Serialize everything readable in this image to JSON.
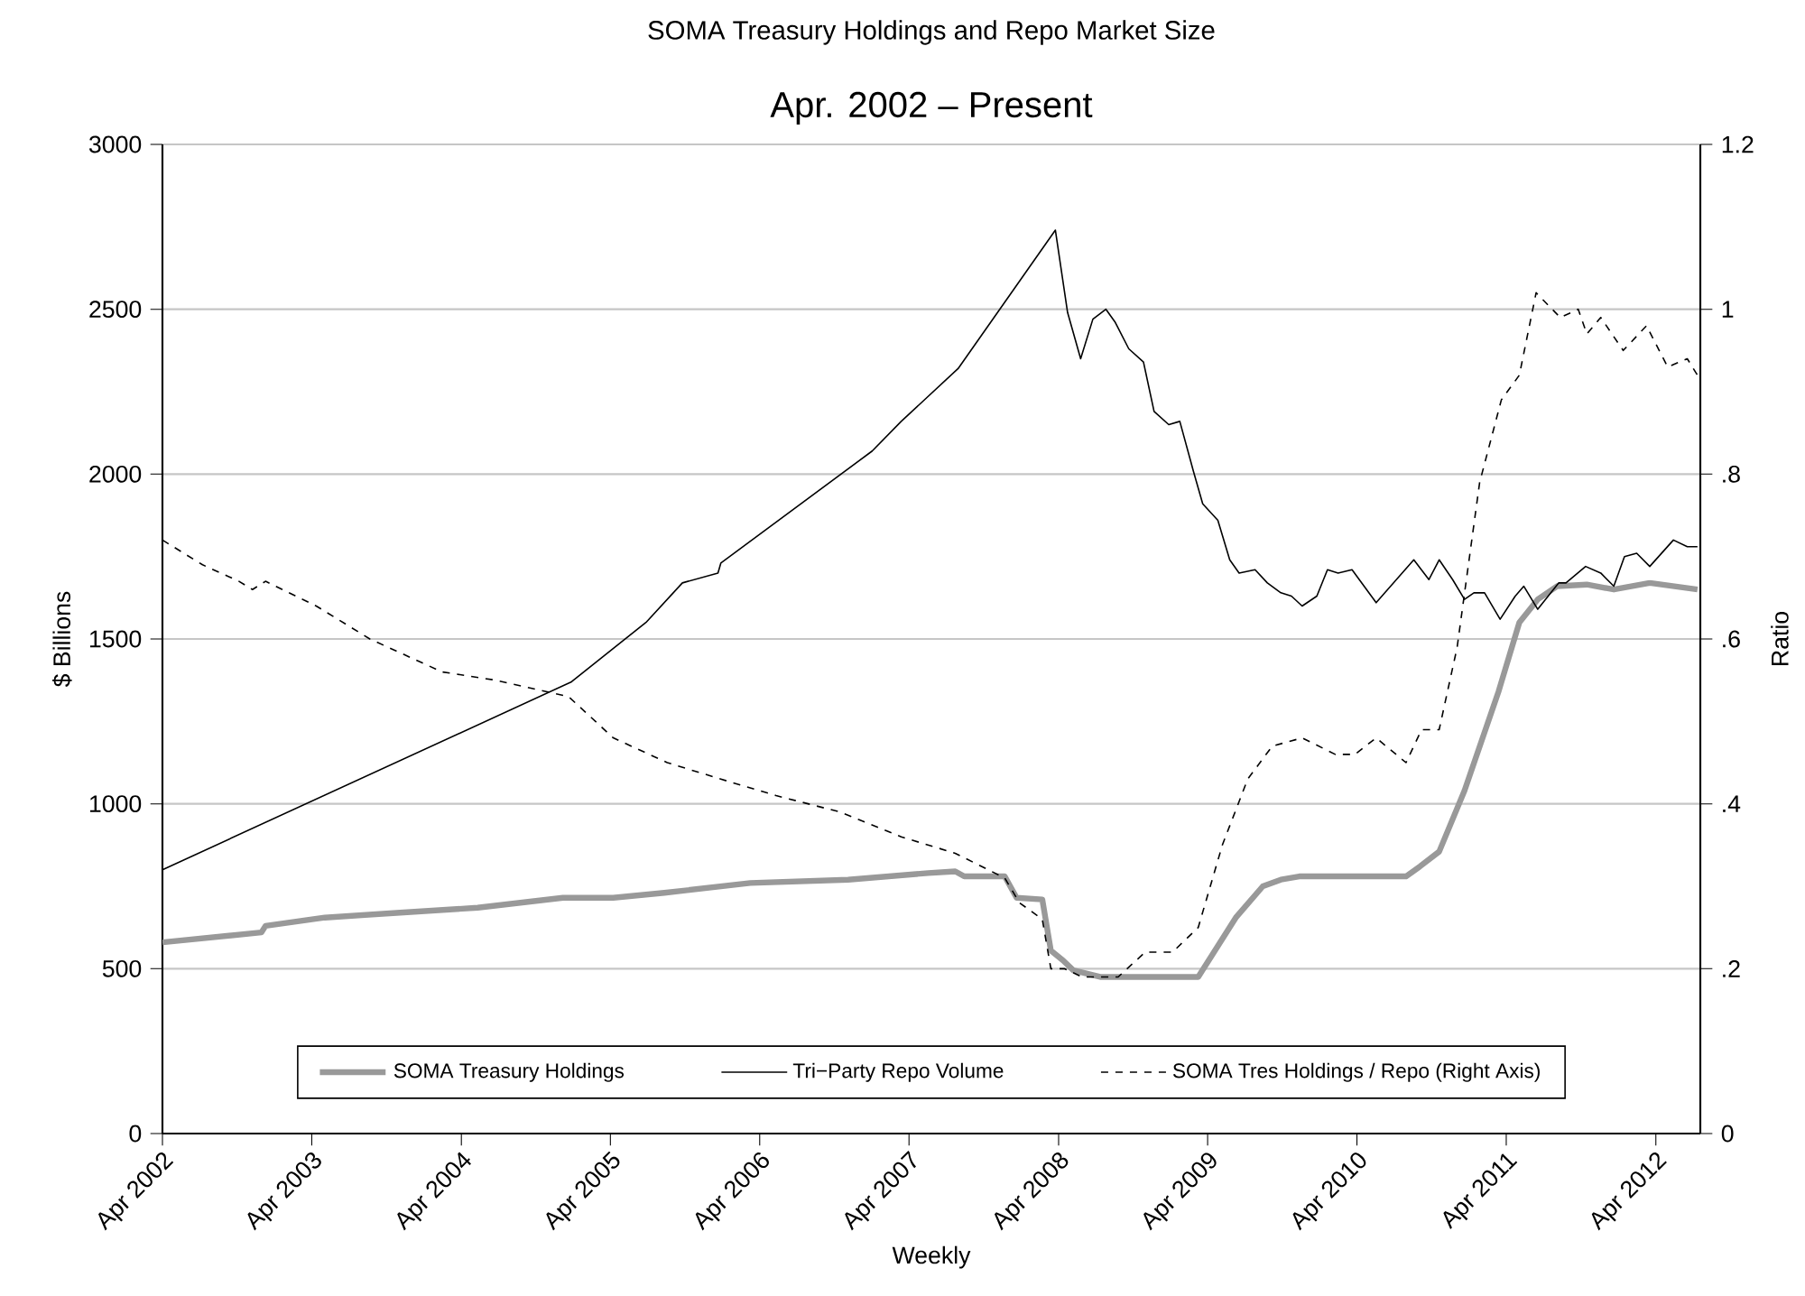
{
  "chart_data": {
    "type": "line",
    "title": "SOMA Treasury Holdings and Repo Market Size",
    "subtitle": "Apr. 2002 – Present",
    "xlabel": "Weekly",
    "ylabel": "$ Billions",
    "y2label": "Ratio",
    "xlim": [
      "2002-04-01",
      "2012-07-19"
    ],
    "xticks": [
      {
        "value": "2002-04-01",
        "label": "Apr 2002"
      },
      {
        "value": "2003-04-01",
        "label": "Apr 2003"
      },
      {
        "value": "2004-04-01",
        "label": "Apr 2004"
      },
      {
        "value": "2005-04-01",
        "label": "Apr 2005"
      },
      {
        "value": "2006-04-01",
        "label": "Apr 2006"
      },
      {
        "value": "2007-04-01",
        "label": "Apr 2007"
      },
      {
        "value": "2008-04-01",
        "label": "Apr 2008"
      },
      {
        "value": "2009-04-01",
        "label": "Apr 2009"
      },
      {
        "value": "2010-04-01",
        "label": "Apr 2010"
      },
      {
        "value": "2011-04-01",
        "label": "Apr 2011"
      },
      {
        "value": "2012-04-01",
        "label": "Apr 2012"
      }
    ],
    "ylim": [
      0,
      3000
    ],
    "yticks": [
      0,
      500,
      1000,
      1500,
      2000,
      2500,
      3000
    ],
    "y2lim": [
      0,
      1.2
    ],
    "y2ticks": [
      0,
      {
        "value": 0.2,
        "label": ".2"
      },
      {
        "value": 0.4,
        "label": ".4"
      },
      {
        "value": 0.6,
        "label": ".6"
      },
      {
        "value": 0.8,
        "label": ".8"
      },
      1,
      1.2
    ],
    "grid": "y",
    "legend": "bottom",
    "marker": "none",
    "series": [
      {
        "name": "SOMA Treasury Holdings",
        "color": "#999999",
        "line_style": "solid",
        "x": [
          "2002-04-01",
          "2002-11-29",
          "2002-12-09",
          "2003-05-03",
          "2003-11-03",
          "2004-05-11",
          "2004-12-06",
          "2005-04-08",
          "2005-08-11",
          "2006-03-09",
          "2006-11-03",
          "2007-05-18",
          "2007-07-23",
          "2007-08-14",
          "2007-11-21",
          "2007-12-20",
          "2008-02-21",
          "2008-03-13",
          "2008-04-12",
          "2008-05-07",
          "2008-07-12",
          "2009-03-09",
          "2009-06-09",
          "2009-08-14",
          "2009-09-27",
          "2009-11-11",
          "2010-07-30",
          "2010-09-02",
          "2010-10-19",
          "2010-12-20",
          "2011-03-13",
          "2011-05-03",
          "2011-06-17",
          "2011-08-03",
          "2011-10-15",
          "2011-12-20",
          "2012-03-17",
          "2012-07-12"
        ],
        "values": [
          580,
          610,
          630,
          655,
          670,
          685,
          715,
          715,
          730,
          760,
          770,
          790,
          795,
          780,
          780,
          715,
          710,
          555,
          525,
          495,
          475,
          475,
          655,
          750,
          770,
          780,
          780,
          810,
          855,
          1040,
          1340,
          1550,
          1620,
          1660,
          1665,
          1650,
          1670,
          1650
        ]
      },
      {
        "name": "Tri−Party Repo Volume",
        "color": "#000000",
        "line_style": "solid",
        "x": [
          "2002-04-01",
          "2004-12-27",
          "2005-06-27",
          "2005-09-24",
          "2005-12-20",
          "2005-12-27",
          "2007-01-01",
          "2007-03-13",
          "2007-07-30",
          "2008-03-24",
          "2008-04-23",
          "2008-05-25",
          "2008-06-24",
          "2008-07-26",
          "2008-08-18",
          "2008-09-20",
          "2008-10-26",
          "2008-11-21",
          "2008-12-27",
          "2009-01-23",
          "2009-02-25",
          "2009-03-20",
          "2009-04-26",
          "2009-05-25",
          "2009-06-17",
          "2009-07-26",
          "2009-08-25",
          "2009-09-27",
          "2009-10-23",
          "2009-11-18",
          "2009-12-24",
          "2010-01-19",
          "2010-02-14",
          "2010-03-20",
          "2010-05-18",
          "2010-08-18",
          "2010-09-24",
          "2010-10-19",
          "2010-11-21",
          "2010-12-20",
          "2011-01-12",
          "2011-02-07",
          "2011-03-17",
          "2011-04-23",
          "2011-05-14",
          "2011-06-17",
          "2011-08-07",
          "2011-08-25",
          "2011-10-12",
          "2011-11-18",
          "2011-12-20",
          "2012-01-15",
          "2012-02-14",
          "2012-03-17",
          "2012-05-14",
          "2012-06-17",
          "2012-07-12"
        ],
        "values": [
          800,
          1370,
          1550,
          1670,
          1700,
          1730,
          2070,
          2160,
          2320,
          2740,
          2490,
          2350,
          2470,
          2500,
          2460,
          2380,
          2340,
          2190,
          2150,
          2160,
          2010,
          1910,
          1860,
          1740,
          1700,
          1710,
          1670,
          1640,
          1630,
          1600,
          1630,
          1710,
          1700,
          1710,
          1610,
          1740,
          1680,
          1740,
          1680,
          1620,
          1640,
          1640,
          1560,
          1630,
          1660,
          1590,
          1670,
          1670,
          1720,
          1700,
          1660,
          1750,
          1760,
          1720,
          1800,
          1780,
          1780
        ]
      },
      {
        "name": "SOMA Tres Holdings / Repo (Right Axis)",
        "color": "#000000",
        "line_style": "dashed",
        "axis": "y2",
        "x": [
          "2002-04-01",
          "2002-07-08",
          "2002-10-05",
          "2002-11-07",
          "2002-12-09",
          "2003-04-12",
          "2003-08-21",
          "2004-02-14",
          "2004-06-24",
          "2004-12-20",
          "2005-04-08",
          "2005-08-18",
          "2005-12-27",
          "2006-05-11",
          "2006-10-15",
          "2007-03-13",
          "2007-07-23",
          "2007-11-21",
          "2007-12-27",
          "2008-02-21",
          "2008-03-13",
          "2008-04-15",
          "2008-05-29",
          "2008-08-25",
          "2008-10-30",
          "2009-01-05",
          "2009-03-09",
          "2009-05-07",
          "2009-07-08",
          "2009-09-06",
          "2009-11-18",
          "2010-02-07",
          "2010-03-27",
          "2010-05-18",
          "2010-07-30",
          "2010-09-06",
          "2010-10-19",
          "2010-12-02",
          "2011-01-26",
          "2011-03-20",
          "2011-05-03",
          "2011-06-13",
          "2011-08-11",
          "2011-09-24",
          "2011-10-15",
          "2011-11-18",
          "2012-01-12",
          "2012-03-09",
          "2012-04-30",
          "2012-06-17",
          "2012-07-12"
        ],
        "values": [
          0.72,
          0.69,
          0.67,
          0.66,
          0.67,
          0.64,
          0.6,
          0.56,
          0.55,
          0.53,
          0.48,
          0.45,
          0.43,
          0.41,
          0.39,
          0.36,
          0.34,
          0.31,
          0.28,
          0.26,
          0.2,
          0.2,
          0.19,
          0.19,
          0.22,
          0.22,
          0.25,
          0.35,
          0.43,
          0.47,
          0.48,
          0.46,
          0.46,
          0.48,
          0.45,
          0.49,
          0.49,
          0.59,
          0.79,
          0.89,
          0.92,
          1.02,
          0.99,
          1.0,
          0.97,
          0.99,
          0.95,
          0.98,
          0.93,
          0.94,
          0.92
        ]
      }
    ]
  }
}
